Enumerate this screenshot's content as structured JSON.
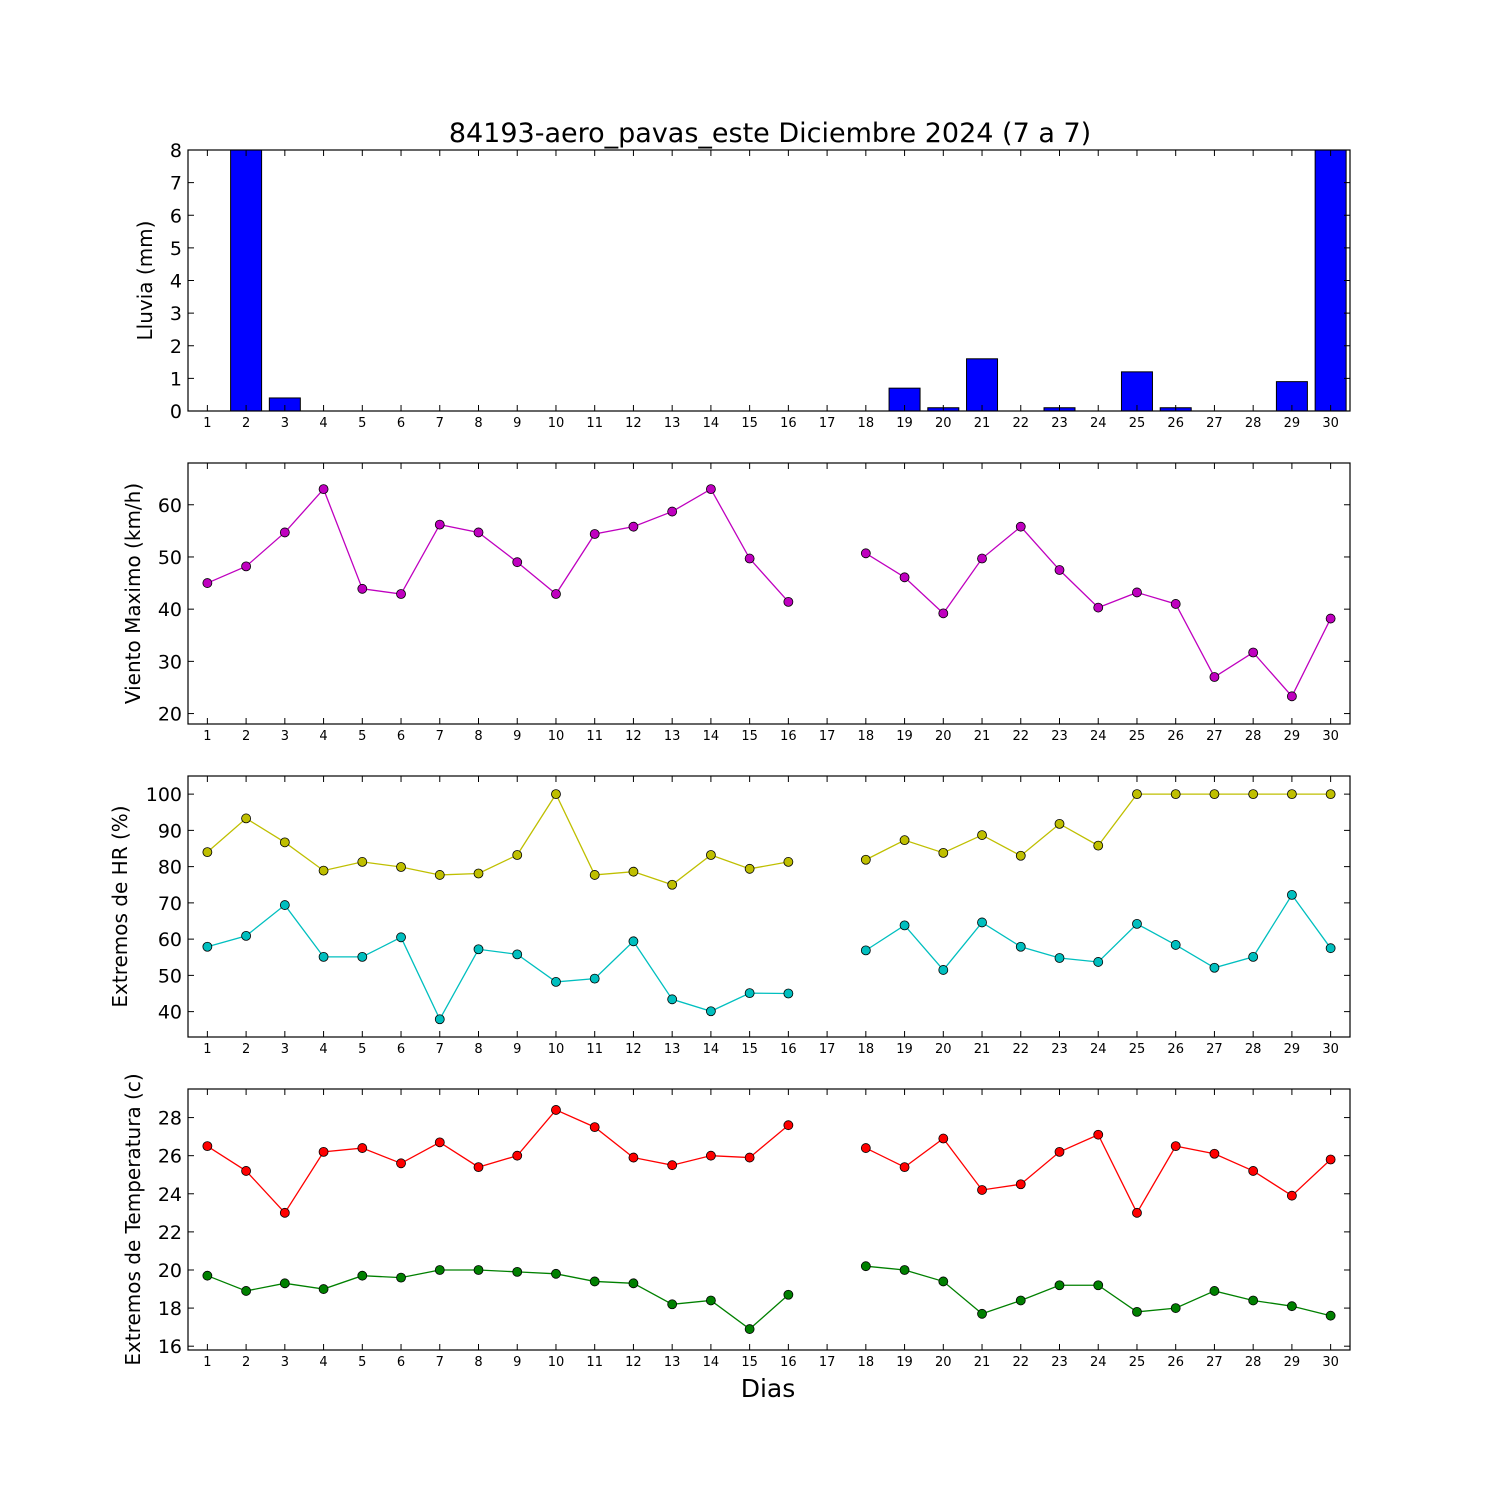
{
  "page": {
    "title": "84193-aero_pavas_este Diciembre 2024  (7 a 7)",
    "xlabel": "Dias"
  },
  "colors": {
    "rain": "#0000ff",
    "wind": "#bf00bf",
    "hr_max": "#bfbf00",
    "hr_min": "#00bfbf",
    "temp_max": "#ff0000",
    "temp_min": "#008000"
  },
  "chart_data": [
    {
      "type": "bar",
      "ylabel": "Lluvia (mm)",
      "ylim": [
        0,
        8
      ],
      "yticks": [
        0,
        1,
        2,
        3,
        4,
        5,
        6,
        7,
        8
      ],
      "categories": [
        1,
        2,
        3,
        4,
        5,
        6,
        7,
        8,
        9,
        10,
        11,
        12,
        13,
        14,
        15,
        16,
        17,
        18,
        19,
        20,
        21,
        22,
        23,
        24,
        25,
        26,
        27,
        28,
        29,
        30
      ],
      "series": [
        {
          "values": [
            0,
            8,
            0.4,
            0,
            0,
            0,
            0,
            0,
            0,
            0,
            0,
            0,
            0,
            0,
            0,
            0,
            0,
            0,
            0.7,
            0.1,
            1.6,
            0,
            0.1,
            0,
            1.2,
            0.1,
            0,
            0,
            0.9,
            8
          ],
          "color": "#0000ff"
        }
      ]
    },
    {
      "type": "line",
      "ylabel": "Viento Maximo (km/h)",
      "ylim": [
        18,
        68
      ],
      "yticks": [
        20,
        30,
        40,
        50,
        60
      ],
      "categories": [
        1,
        2,
        3,
        4,
        5,
        6,
        7,
        8,
        9,
        10,
        11,
        12,
        13,
        14,
        15,
        16,
        17,
        18,
        19,
        20,
        21,
        22,
        23,
        24,
        25,
        26,
        27,
        28,
        29,
        30
      ],
      "series": [
        {
          "values": [
            45,
            48.2,
            54.7,
            63,
            43.9,
            42.9,
            56.2,
            54.7,
            49,
            42.9,
            54.4,
            55.8,
            58.7,
            63,
            49.7,
            41.4,
            null,
            50.7,
            46.1,
            39.2,
            49.7,
            55.8,
            47.5,
            40.3,
            43.2,
            41,
            27,
            31.7,
            23.3,
            38.2
          ],
          "color": "#bf00bf"
        }
      ]
    },
    {
      "type": "line",
      "ylabel": "Extremos de HR (%)",
      "ylim": [
        33,
        105
      ],
      "yticks": [
        40,
        50,
        60,
        70,
        80,
        90,
        100
      ],
      "categories": [
        1,
        2,
        3,
        4,
        5,
        6,
        7,
        8,
        9,
        10,
        11,
        12,
        13,
        14,
        15,
        16,
        17,
        18,
        19,
        20,
        21,
        22,
        23,
        24,
        25,
        26,
        27,
        28,
        29,
        30
      ],
      "series": [
        {
          "values": [
            84,
            93.3,
            86.7,
            78.9,
            81.3,
            79.9,
            77.7,
            78.1,
            83.2,
            100,
            77.7,
            78.6,
            75,
            83.2,
            79.4,
            81.3,
            null,
            81.9,
            87.3,
            83.8,
            88.7,
            83,
            91.8,
            85.8,
            100,
            100,
            100,
            100,
            100,
            100
          ],
          "color": "#bfbf00"
        },
        {
          "values": [
            57.9,
            60.9,
            69.4,
            55.1,
            55.1,
            60.5,
            37.9,
            57.2,
            55.8,
            48.2,
            49.1,
            59.4,
            43.4,
            40.1,
            45.1,
            45,
            null,
            56.9,
            63.8,
            51.5,
            64.6,
            57.9,
            54.8,
            53.7,
            64.2,
            58.4,
            52.1,
            55.1,
            72.2,
            57.5
          ],
          "color": "#00bfbf"
        }
      ]
    },
    {
      "type": "line",
      "ylabel": "Extremos de Temperatura (c)",
      "ylim": [
        15.8,
        29.5
      ],
      "yticks": [
        16,
        18,
        20,
        22,
        24,
        26,
        28
      ],
      "categories": [
        1,
        2,
        3,
        4,
        5,
        6,
        7,
        8,
        9,
        10,
        11,
        12,
        13,
        14,
        15,
        16,
        17,
        18,
        19,
        20,
        21,
        22,
        23,
        24,
        25,
        26,
        27,
        28,
        29,
        30
      ],
      "series": [
        {
          "values": [
            26.5,
            25.2,
            23,
            26.2,
            26.4,
            25.6,
            26.7,
            25.4,
            26,
            28.4,
            27.5,
            25.9,
            25.5,
            26,
            25.9,
            27.6,
            null,
            26.4,
            25.4,
            26.9,
            24.2,
            24.5,
            26.2,
            27.1,
            23,
            26.5,
            26.1,
            25.2,
            23.9,
            25.8
          ],
          "color": "#ff0000"
        },
        {
          "values": [
            19.7,
            18.9,
            19.3,
            19,
            19.7,
            19.6,
            20,
            20,
            19.9,
            19.8,
            19.4,
            19.3,
            18.2,
            18.4,
            16.9,
            18.7,
            null,
            20.2,
            20,
            19.4,
            17.7,
            18.4,
            19.2,
            19.2,
            17.8,
            18,
            18.9,
            18.4,
            18.1,
            17.6
          ],
          "color": "#008000"
        }
      ]
    }
  ]
}
